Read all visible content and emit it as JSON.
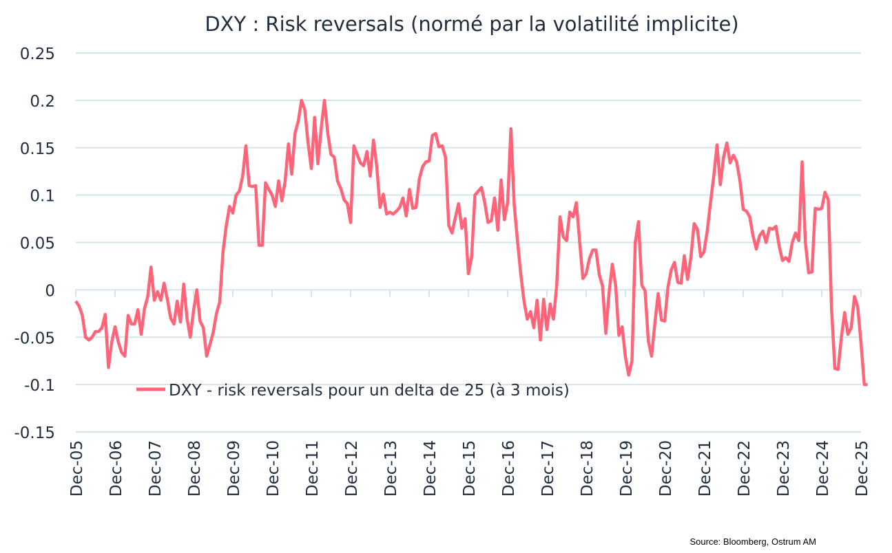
{
  "chart_data": {
    "type": "line",
    "title": "DXY : Risk reversals (normé par la volatilité implicite)",
    "xlabel": "",
    "ylabel": "",
    "ylim": [
      -0.15,
      0.25
    ],
    "yticks": [
      "0.25",
      "0.2",
      "0.15",
      "0.1",
      "0.05",
      "0",
      "-0.05",
      "-0.1",
      "-0.15"
    ],
    "ytick_values": [
      0.25,
      0.2,
      0.15,
      0.1,
      0.05,
      0,
      -0.05,
      -0.1,
      -0.15
    ],
    "xticks": [
      "Dec-05",
      "Dec-06",
      "Dec-07",
      "Dec-08",
      "Dec-09",
      "Dec-10",
      "Dec-11",
      "Dec-12",
      "Dec-13",
      "Dec-14",
      "Dec-15",
      "Dec-16",
      "Dec-17",
      "Dec-18",
      "Dec-19",
      "Dec-20",
      "Dec-21",
      "Dec-22",
      "Dec-23",
      "Dec-24",
      "Dec-25"
    ],
    "xlim": [
      "2005-12",
      "2025-12"
    ],
    "grid": "horizontal",
    "legend_position": "bottom-left",
    "series": [
      {
        "name": "DXY - risk reversals pour un delta de 25 (à 3 mois)",
        "color": "#ff6479",
        "start": "2005-12",
        "frequency": "monthly",
        "values": [
          -0.012,
          -0.017,
          -0.027,
          -0.05,
          -0.053,
          -0.05,
          -0.044,
          -0.044,
          -0.04,
          -0.026,
          -0.082,
          -0.055,
          -0.039,
          -0.055,
          -0.066,
          -0.07,
          -0.027,
          -0.036,
          -0.036,
          -0.021,
          -0.047,
          -0.02,
          -0.007,
          0.024,
          -0.011,
          -0.002,
          -0.011,
          0.007,
          -0.01,
          -0.03,
          -0.036,
          -0.012,
          -0.034,
          0.006,
          -0.03,
          -0.05,
          -0.022,
          0.0,
          -0.033,
          -0.04,
          -0.07,
          -0.058,
          -0.045,
          -0.025,
          -0.013,
          0.04,
          0.068,
          0.088,
          0.081,
          0.1,
          0.104,
          0.12,
          0.152,
          0.11,
          0.109,
          0.11,
          0.047,
          0.047,
          0.113,
          0.106,
          0.1,
          0.088,
          0.115,
          0.094,
          0.115,
          0.154,
          0.122,
          0.165,
          0.178,
          0.2,
          0.19,
          0.155,
          0.128,
          0.182,
          0.133,
          0.17,
          0.2,
          0.166,
          0.143,
          0.14,
          0.115,
          0.107,
          0.095,
          0.091,
          0.071,
          0.152,
          0.143,
          0.134,
          0.131,
          0.146,
          0.12,
          0.158,
          0.13,
          0.087,
          0.101,
          0.08,
          0.082,
          0.08,
          0.083,
          0.087,
          0.097,
          0.078,
          0.106,
          0.086,
          0.087,
          0.117,
          0.13,
          0.135,
          0.136,
          0.163,
          0.165,
          0.151,
          0.152,
          0.14,
          0.068,
          0.06,
          0.076,
          0.091,
          0.065,
          0.075,
          0.017,
          0.035,
          0.1,
          0.104,
          0.108,
          0.092,
          0.071,
          0.073,
          0.097,
          0.063,
          0.116,
          0.074,
          0.092,
          0.17,
          0.09,
          0.052,
          0.017,
          -0.012,
          -0.031,
          -0.023,
          -0.04,
          -0.011,
          -0.053,
          -0.01,
          -0.042,
          -0.015,
          -0.031,
          0.005,
          0.077,
          0.056,
          0.052,
          0.082,
          0.077,
          0.092,
          0.051,
          0.012,
          0.017,
          0.033,
          0.042,
          0.042,
          0.016,
          0.004,
          -0.046,
          -0.003,
          0.027,
          0.005,
          -0.048,
          -0.039,
          -0.071,
          -0.09,
          -0.075,
          0.05,
          0.072,
          0.005,
          -0.001,
          -0.054,
          -0.07,
          -0.035,
          -0.004,
          -0.032,
          -0.033,
          0.003,
          0.021,
          0.029,
          0.008,
          0.007,
          0.036,
          0.011,
          0.034,
          0.07,
          0.064,
          0.035,
          0.04,
          0.062,
          0.092,
          0.12,
          0.153,
          0.111,
          0.14,
          0.155,
          0.134,
          0.142,
          0.135,
          0.115,
          0.085,
          0.083,
          0.077,
          0.057,
          0.043,
          0.057,
          0.062,
          0.05,
          0.065,
          0.064,
          0.067,
          0.046,
          0.031,
          0.034,
          0.03,
          0.05,
          0.06,
          0.052,
          0.135,
          0.05,
          0.018,
          0.019,
          0.086,
          0.085,
          0.086,
          0.103,
          0.095,
          -0.02,
          -0.083,
          -0.084,
          -0.05,
          -0.024,
          -0.047,
          -0.04,
          -0.007,
          -0.018,
          -0.056,
          -0.1,
          -0.1
        ]
      }
    ],
    "source": "Source: Bloomberg,  Ostrum AM"
  },
  "colors": {
    "gridline": "#d5e3ec",
    "line": "#ff6479",
    "text": "#1f2d3d"
  }
}
